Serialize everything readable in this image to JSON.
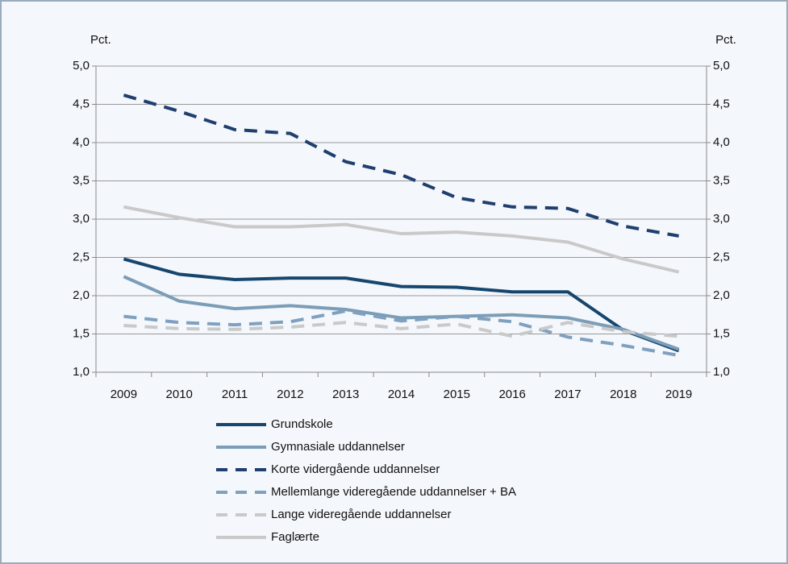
{
  "chart_data": {
    "type": "line",
    "y_label": "Pct.",
    "y2_label": "Pct.",
    "categories": [
      "2009",
      "2010",
      "2011",
      "2012",
      "2013",
      "2014",
      "2015",
      "2016",
      "2017",
      "2018",
      "2019"
    ],
    "series": [
      {
        "name": "Grundskole",
        "color": "#16466e",
        "style": "solid",
        "values": [
          2.48,
          2.28,
          2.21,
          2.23,
          2.23,
          2.12,
          2.11,
          2.05,
          2.05,
          1.55,
          1.28
        ]
      },
      {
        "name": "Gymnasiale uddannelser",
        "color": "#7c9db7",
        "style": "solid",
        "values": [
          2.25,
          1.93,
          1.83,
          1.87,
          1.82,
          1.71,
          1.73,
          1.75,
          1.71,
          1.56,
          1.3
        ]
      },
      {
        "name": "Korte vidergående uddannelser",
        "color": "#1f3f6e",
        "style": "dashed",
        "values": [
          4.62,
          4.41,
          4.17,
          4.12,
          3.75,
          3.58,
          3.28,
          3.16,
          3.14,
          2.91,
          2.78
        ]
      },
      {
        "name": "Mellemlange videregående uddannelser + BA",
        "color": "#7fa0bf",
        "style": "dashed",
        "values": [
          1.73,
          1.65,
          1.62,
          1.66,
          1.8,
          1.67,
          1.73,
          1.66,
          1.46,
          1.35,
          1.22
        ]
      },
      {
        "name": "Lange videregående uddannelser",
        "color": "#c9c9c9",
        "style": "dashed",
        "values": [
          1.61,
          1.57,
          1.56,
          1.59,
          1.65,
          1.57,
          1.63,
          1.47,
          1.65,
          1.53,
          1.47
        ]
      },
      {
        "name": "Faglærte",
        "color": "#c9c9c9",
        "style": "solid",
        "values": [
          3.16,
          3.02,
          2.9,
          2.9,
          2.93,
          2.81,
          2.83,
          2.78,
          2.7,
          2.48,
          2.31
        ]
      }
    ],
    "ylim": [
      1,
      5
    ],
    "yticks": [
      {
        "value": 1,
        "label": "1,0"
      },
      {
        "value": 1.5,
        "label": "1,5"
      },
      {
        "value": 2,
        "label": "2,0"
      },
      {
        "value": 2.5,
        "label": "2,5"
      },
      {
        "value": 3,
        "label": "3,0"
      },
      {
        "value": 3.5,
        "label": "3,5"
      },
      {
        "value": 4,
        "label": "4,0"
      },
      {
        "value": 4.5,
        "label": "4,5"
      },
      {
        "value": 5,
        "label": "5,0"
      }
    ],
    "y2lim": [
      1,
      5
    ],
    "y2ticks": [
      {
        "value": 1,
        "label": "1,0"
      },
      {
        "value": 1.5,
        "label": "1,5"
      },
      {
        "value": 2,
        "label": "2,0"
      },
      {
        "value": 2.5,
        "label": "2,5"
      },
      {
        "value": 3,
        "label": "3,0"
      },
      {
        "value": 3.5,
        "label": "3,5"
      },
      {
        "value": 4,
        "label": "4,0"
      },
      {
        "value": 4.5,
        "label": "4,5"
      },
      {
        "value": 5,
        "label": "5,0"
      }
    ],
    "grid": true
  }
}
